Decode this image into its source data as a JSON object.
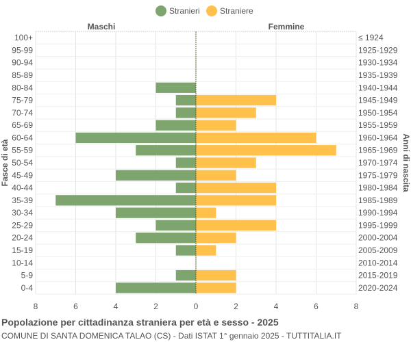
{
  "chart_data": {
    "type": "bar",
    "orientation": "horizontal-pyramid",
    "title": "Popolazione per cittadinanza straniera per età e sesso - 2025",
    "subtitle": "COMUNE DI SANTA DOMENICA TALAO (CS) - Dati ISTAT 1° gennaio 2025 - TUTTITALIA.IT",
    "left_header": "Maschi",
    "right_header": "Femmine",
    "ylabel": "Fasce di età",
    "ylabel_right": "Anni di nascita",
    "categories": [
      "100+",
      "95-99",
      "90-94",
      "85-89",
      "80-84",
      "75-79",
      "70-74",
      "65-69",
      "60-64",
      "55-59",
      "50-54",
      "45-49",
      "40-44",
      "35-39",
      "30-34",
      "25-29",
      "20-24",
      "15-19",
      "10-14",
      "5-9",
      "0-4"
    ],
    "birth_years": [
      "≤ 1924",
      "1925-1929",
      "1930-1934",
      "1935-1939",
      "1940-1944",
      "1945-1949",
      "1950-1954",
      "1955-1959",
      "1960-1964",
      "1965-1969",
      "1970-1974",
      "1975-1979",
      "1980-1984",
      "1985-1989",
      "1990-1994",
      "1995-1999",
      "2000-2004",
      "2005-2009",
      "2010-2014",
      "2015-2019",
      "2020-2024"
    ],
    "series": [
      {
        "name": "Stranieri",
        "color": "#7fa56f",
        "values": [
          0,
          0,
          0,
          0,
          2,
          1,
          1,
          2,
          6,
          3,
          1,
          4,
          1,
          7,
          4,
          2,
          3,
          1,
          0,
          1,
          4
        ]
      },
      {
        "name": "Straniere",
        "color": "#ffc04c",
        "values": [
          0,
          0,
          0,
          0,
          0,
          4,
          3,
          2,
          6,
          7,
          3,
          2,
          4,
          4,
          1,
          4,
          2,
          1,
          0,
          2,
          2
        ]
      }
    ],
    "xlim": [
      -8,
      8
    ],
    "xticks": [
      "8",
      "6",
      "4",
      "2",
      "0",
      "2",
      "4",
      "6",
      "8"
    ],
    "grid": true,
    "legend": "top-center"
  }
}
